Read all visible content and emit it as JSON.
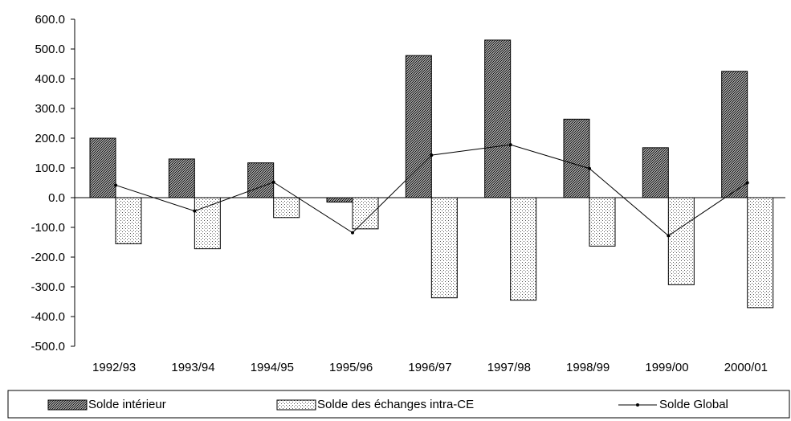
{
  "chart_data": {
    "type": "bar",
    "categories": [
      "1992/93",
      "1993/94",
      "1994/95",
      "1995/96",
      "1996/97",
      "1997/98",
      "1998/99",
      "1999/00",
      "2000/01"
    ],
    "series": [
      {
        "name": "Solde intérieur",
        "kind": "bar",
        "pattern": "dense-hatch",
        "values": [
          200,
          130,
          117,
          -15,
          478,
          530,
          264,
          168,
          425
        ]
      },
      {
        "name": "Solde des échanges intra-CE",
        "kind": "bar",
        "pattern": "sparse-dots",
        "values": [
          -155,
          -172,
          -67,
          -105,
          -337,
          -345,
          -163,
          -293,
          -370
        ]
      },
      {
        "name": "Solde Global",
        "kind": "line",
        "marker": "small-dot",
        "values": [
          42,
          -45,
          52,
          -118,
          143,
          178,
          98,
          -128,
          50
        ]
      }
    ],
    "yticks": [
      "600.0",
      "500.0",
      "400.0",
      "300.0",
      "200.0",
      "100.0",
      "0.0",
      "-100.0",
      "-200.0",
      "-300.0",
      "-400.0",
      "-500.0"
    ],
    "ylim": [
      -500,
      600
    ],
    "title": "",
    "xlabel": "",
    "ylabel": "",
    "grid": false,
    "legend_position": "bottom",
    "colors": {
      "axis": "#000000",
      "bar_fill_dark": "#3a3a3a",
      "bar_fill_light": "#ffffff",
      "line": "#000000"
    }
  }
}
